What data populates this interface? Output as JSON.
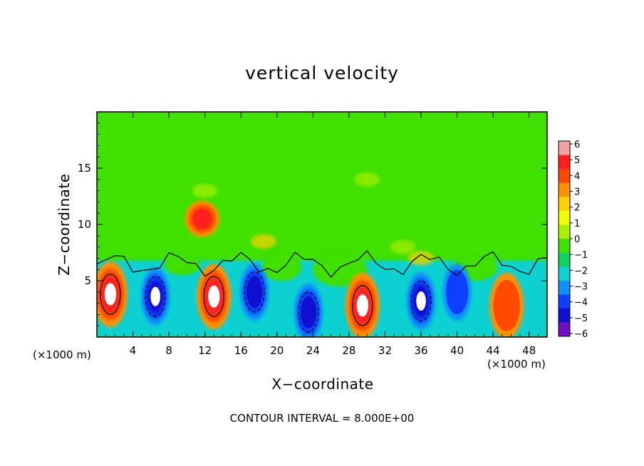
{
  "chart_data": {
    "type": "heatmap",
    "title": "vertical velocity",
    "xlabel": "X−coordinate",
    "ylabel": "Z−coordinate",
    "x_unit": "(×1000 m)",
    "x_ticks": [
      4,
      8,
      12,
      16,
      20,
      24,
      28,
      32,
      36,
      40,
      44,
      48
    ],
    "y_ticks": [
      5,
      10,
      15
    ],
    "xlim": [
      0,
      50
    ],
    "ylim": [
      0,
      20
    ],
    "colorbar": {
      "ticks": [
        "6",
        "5",
        "4",
        "3",
        "2",
        "1",
        "0",
        "−1",
        "−2",
        "−3",
        "−4",
        "−5",
        "−6"
      ],
      "range": [
        -6,
        6
      ],
      "colors": [
        "#f2a0a0",
        "#ff2020",
        "#ff4a00",
        "#ff9000",
        "#ffd000",
        "#f0ff00",
        "#a8f000",
        "#40e000",
        "#10d060",
        "#10d0d0",
        "#1090ff",
        "#1040ff",
        "#1010d0",
        "#7010c0"
      ]
    },
    "contour_interval": "CONTOUR INTERVAL = 8.000E+00",
    "features": [
      {
        "kind": "updraft",
        "x": 1.5,
        "z": 3.8,
        "peak": 8
      },
      {
        "kind": "downdraft",
        "x": 6.5,
        "z": 3.6,
        "peak": -8
      },
      {
        "kind": "updraft",
        "x": 13,
        "z": 3.6,
        "peak": 8
      },
      {
        "kind": "updraft",
        "x": 11.7,
        "z": 10.5,
        "peak": 6
      },
      {
        "kind": "downdraft",
        "x": 17.5,
        "z": 4,
        "peak": -7
      },
      {
        "kind": "downdraft",
        "x": 23.5,
        "z": 2.2,
        "peak": -7
      },
      {
        "kind": "updraft",
        "x": 29.5,
        "z": 2.8,
        "peak": 8
      },
      {
        "kind": "downdraft",
        "x": 36,
        "z": 3.2,
        "peak": -8
      },
      {
        "kind": "updraft",
        "x": 45.5,
        "z": 2.8,
        "peak": 5
      },
      {
        "kind": "downdraft",
        "x": 40,
        "z": 4,
        "peak": -5
      }
    ]
  }
}
